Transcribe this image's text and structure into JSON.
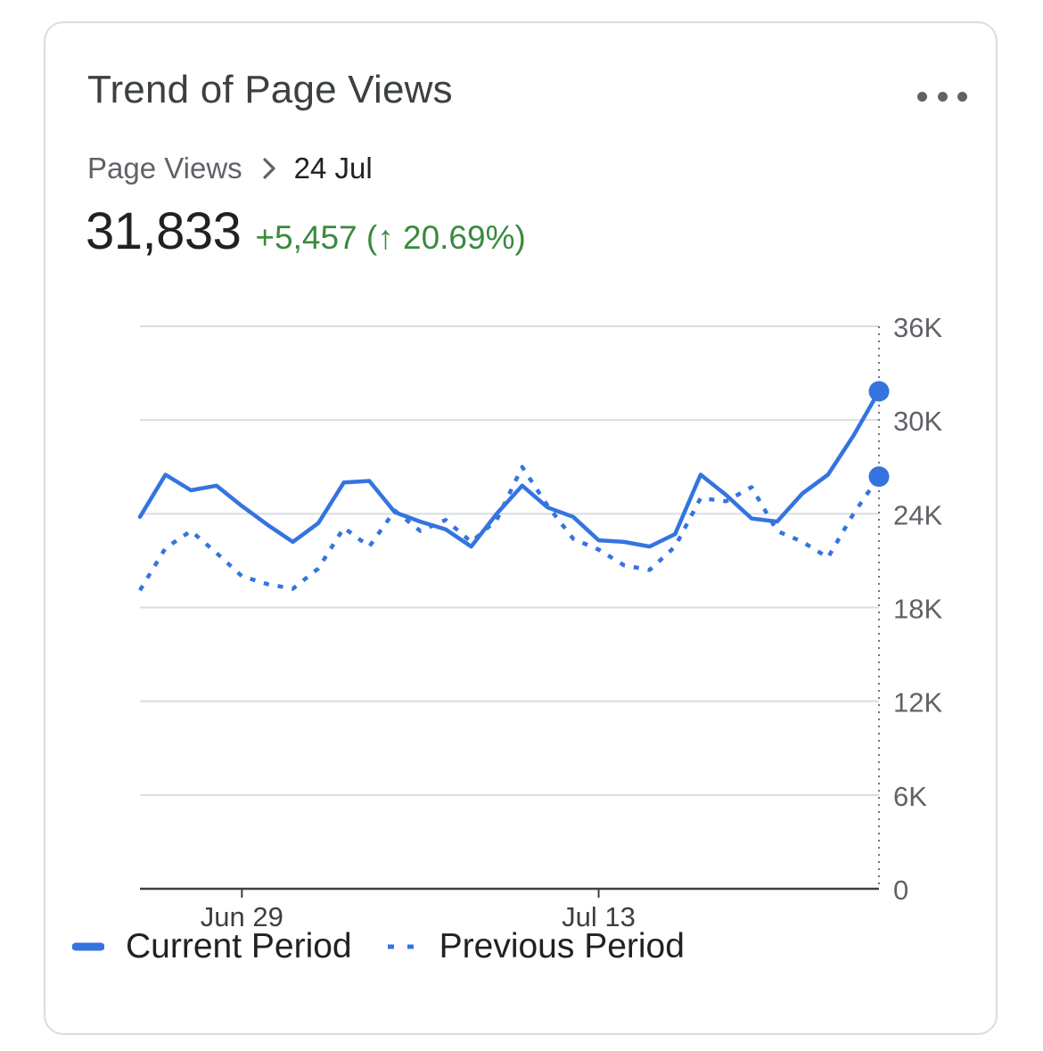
{
  "card": {
    "title": "Trend of Page Views",
    "more_icon": "more-horizontal-icon",
    "breadcrumb": {
      "root": "Page Views",
      "separator_icon": "chevron-right-icon",
      "leaf": "24 Jul"
    },
    "summary": {
      "total": "31,833",
      "delta": "+5,457 (↑ 20.69%)"
    }
  },
  "colors": {
    "series": "#3474e0",
    "positive": "#3a8a3e",
    "grid": "#dadce0",
    "axis": "#3c4043"
  },
  "chart_data": {
    "type": "line",
    "title": "Trend of Page Views",
    "x_start": "Jun 25",
    "x_end": "Jul 24",
    "xticks": [
      {
        "index": 4,
        "label": "Jun 29"
      },
      {
        "index": 18,
        "label": "Jul 13"
      }
    ],
    "ylim": [
      0,
      36000
    ],
    "yticks": [
      {
        "value": 36000,
        "label": "36K"
      },
      {
        "value": 30000,
        "label": "30K"
      },
      {
        "value": 24000,
        "label": "24K"
      },
      {
        "value": 18000,
        "label": "18K"
      },
      {
        "value": 12000,
        "label": "12K"
      },
      {
        "value": 6000,
        "label": "6K"
      },
      {
        "value": 0,
        "label": "0"
      }
    ],
    "y_axis_position": "right",
    "grid": true,
    "legend_position": "bottom",
    "series": [
      {
        "name": "Current Period",
        "style": "solid",
        "values": [
          23800,
          26500,
          25500,
          25800,
          24500,
          23300,
          22200,
          23400,
          26000,
          26100,
          24100,
          23500,
          23000,
          21900,
          24000,
          25800,
          24400,
          23800,
          22300,
          22200,
          21900,
          22700,
          26500,
          25200,
          23700,
          23500,
          25300,
          26500,
          29000,
          31833
        ]
      },
      {
        "name": "Previous Period",
        "style": "dotted",
        "values": [
          19100,
          21800,
          22900,
          21500,
          20000,
          19500,
          19200,
          20500,
          23100,
          21900,
          24200,
          22900,
          23600,
          22200,
          23600,
          27000,
          24500,
          22400,
          21700,
          20700,
          20400,
          21900,
          25000,
          24800,
          25700,
          22900,
          22200,
          21200,
          24000,
          26376
        ]
      }
    ],
    "highlight": {
      "date": "24 Jul",
      "index": 29
    }
  }
}
